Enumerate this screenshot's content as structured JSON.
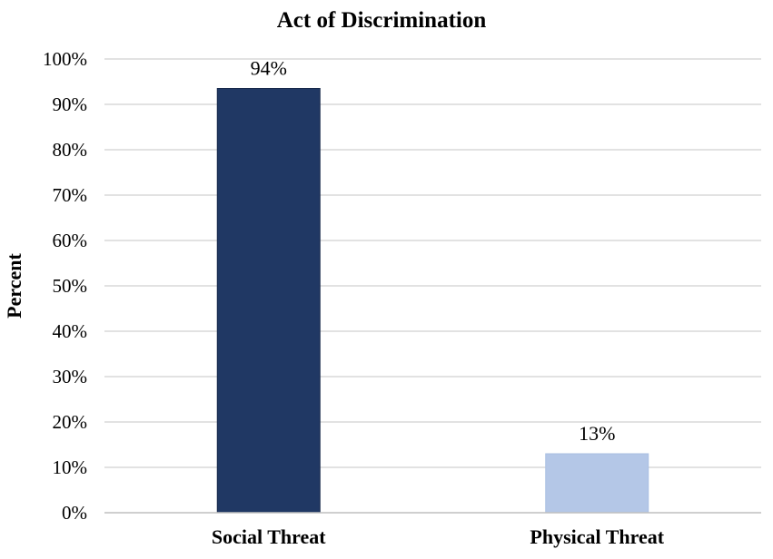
{
  "chart_data": {
    "type": "bar",
    "title": "Act of Discrimination",
    "xlabel": "",
    "ylabel": "Percent",
    "categories": [
      "Social Threat",
      "Physical Threat"
    ],
    "values": [
      93.5,
      13
    ],
    "data_labels": [
      "94%",
      "13%"
    ],
    "colors": [
      "#203864",
      "#b4c7e7"
    ],
    "ylim": [
      0,
      100
    ],
    "yticks": [
      0,
      10,
      20,
      30,
      40,
      50,
      60,
      70,
      80,
      90,
      100
    ],
    "ytick_labels": [
      "0%",
      "10%",
      "20%",
      "30%",
      "40%",
      "50%",
      "60%",
      "70%",
      "80%",
      "90%",
      "100%"
    ],
    "grid": true,
    "legend": "none"
  }
}
